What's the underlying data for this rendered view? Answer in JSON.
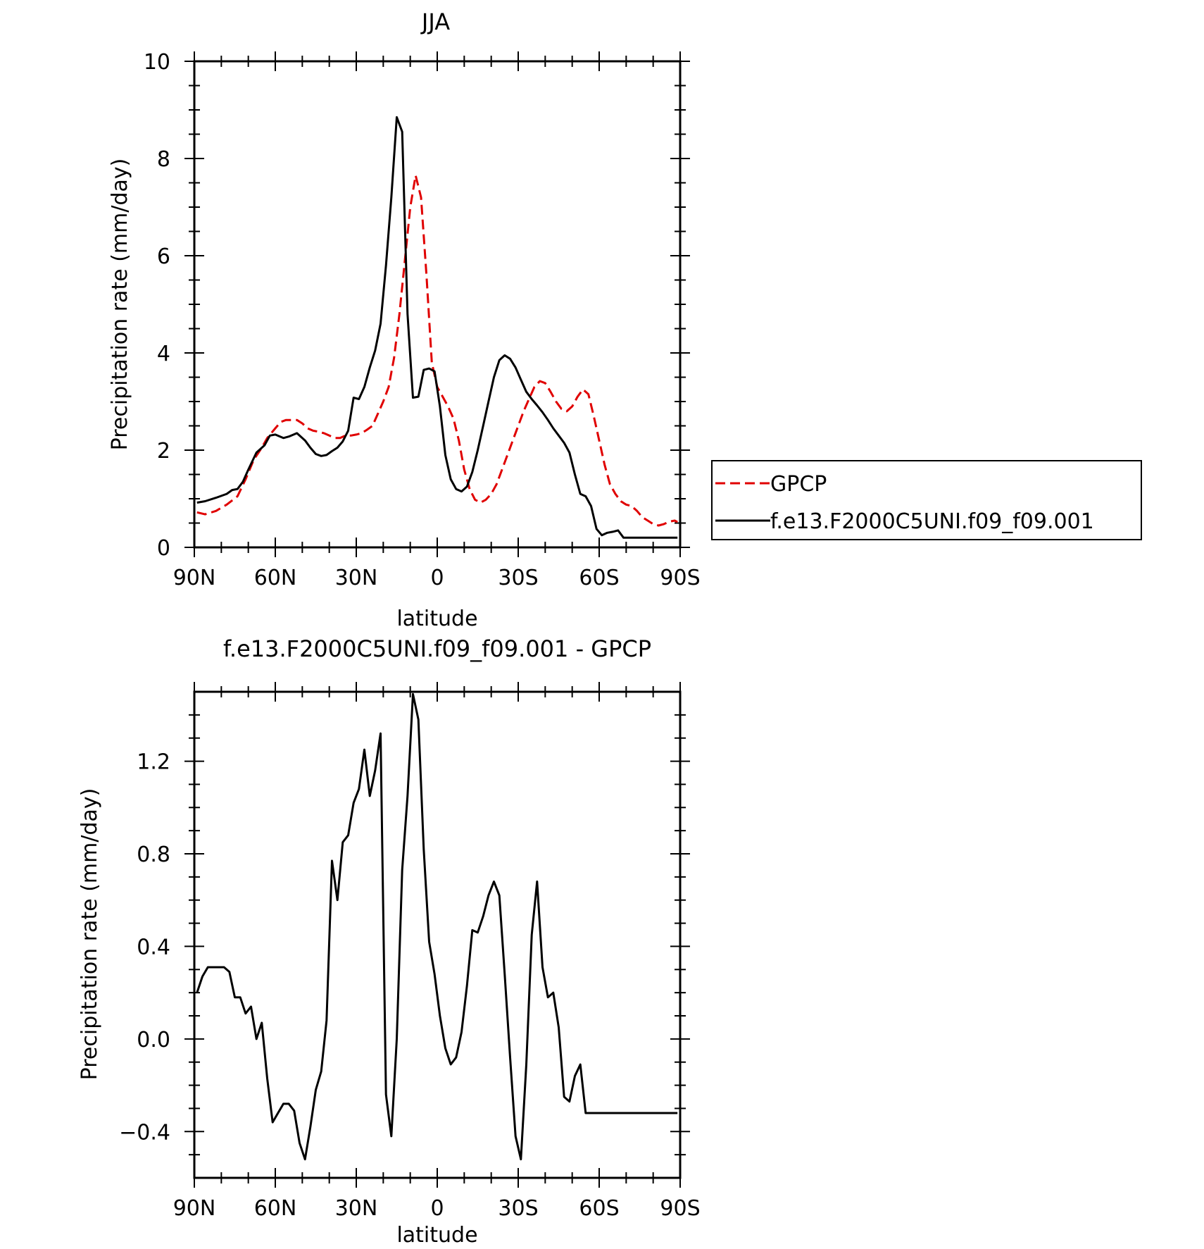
{
  "chart_data": [
    {
      "type": "line",
      "title": "JJA",
      "xlabel": "latitude",
      "ylabel": "Precipitation rate (mm/day)",
      "xlim": [
        90,
        -90
      ],
      "ylim": [
        0,
        10
      ],
      "x_ticks": [
        {
          "value": 90,
          "label": "90N"
        },
        {
          "value": 60,
          "label": "60N"
        },
        {
          "value": 30,
          "label": "30N"
        },
        {
          "value": 0,
          "label": "0"
        },
        {
          "value": -30,
          "label": "30S"
        },
        {
          "value": -60,
          "label": "60S"
        },
        {
          "value": -90,
          "label": "90S"
        }
      ],
      "y_ticks": [
        {
          "value": 0,
          "label": "0"
        },
        {
          "value": 2,
          "label": "2"
        },
        {
          "value": 4,
          "label": "4"
        },
        {
          "value": 6,
          "label": "6"
        },
        {
          "value": 8,
          "label": "8"
        },
        {
          "value": 10,
          "label": "10"
        }
      ],
      "legend_position": "right",
      "series": [
        {
          "name": "GPCP",
          "color": "#e00000",
          "style": "dashed",
          "x": [
            89,
            86,
            82,
            78,
            74,
            71,
            68,
            65,
            63,
            60,
            58,
            56,
            54,
            52,
            50,
            48,
            46,
            44,
            42,
            40,
            38,
            36,
            34,
            32,
            30,
            28,
            26,
            24,
            22,
            20,
            18,
            16,
            14,
            12,
            10,
            8,
            6,
            4,
            2,
            0,
            -2,
            -4,
            -6,
            -8,
            -10,
            -12,
            -14,
            -16,
            -18,
            -20,
            -22,
            -24,
            -26,
            -28,
            -30,
            -32,
            -34,
            -36,
            -38,
            -40,
            -42,
            -44,
            -46,
            -48,
            -50,
            -52,
            -54,
            -56,
            -58,
            -60,
            -62,
            -64,
            -66,
            -68,
            -70,
            -72,
            -74,
            -76,
            -78,
            -80,
            -82,
            -84,
            -86,
            -88,
            -89
          ],
          "y": [
            0.72,
            0.68,
            0.75,
            0.88,
            1.05,
            1.4,
            1.8,
            2.05,
            2.25,
            2.45,
            2.58,
            2.62,
            2.62,
            2.62,
            2.55,
            2.45,
            2.4,
            2.38,
            2.35,
            2.3,
            2.25,
            2.25,
            2.3,
            2.3,
            2.32,
            2.35,
            2.42,
            2.5,
            2.75,
            3.0,
            3.3,
            3.9,
            4.8,
            5.9,
            7.0,
            7.65,
            7.2,
            5.6,
            3.8,
            3.3,
            3.1,
            2.9,
            2.65,
            2.2,
            1.6,
            1.2,
            0.98,
            0.92,
            0.98,
            1.1,
            1.3,
            1.6,
            1.9,
            2.2,
            2.5,
            2.8,
            3.05,
            3.3,
            3.42,
            3.38,
            3.2,
            3.0,
            2.85,
            2.8,
            2.9,
            3.1,
            3.25,
            3.15,
            2.7,
            2.2,
            1.7,
            1.3,
            1.1,
            0.95,
            0.88,
            0.85,
            0.75,
            0.62,
            0.55,
            0.48,
            0.45,
            0.48,
            0.53,
            0.55,
            0.52
          ]
        },
        {
          "name": "f.e13.F2000C5UNI.f09_f09.001",
          "color": "#000000",
          "style": "solid",
          "x": [
            89,
            86,
            82,
            78,
            76,
            74,
            72,
            70,
            67,
            64,
            62,
            60,
            57,
            55,
            52,
            49,
            47,
            45,
            43,
            41,
            39,
            37,
            35,
            33,
            31,
            29,
            27,
            25,
            23,
            21,
            19,
            17,
            15,
            13,
            11,
            9,
            7,
            5,
            3,
            1,
            -1,
            -3,
            -5,
            -7,
            -9,
            -11,
            -13,
            -15,
            -17,
            -19,
            -21,
            -23,
            -25,
            -27,
            -29,
            -31,
            -33,
            -35,
            -37,
            -39,
            -41,
            -43,
            -45,
            -47,
            -49,
            -51,
            -53,
            -55,
            -57,
            -59,
            -61,
            -63,
            -65,
            -67,
            -69,
            -71,
            -73,
            -75,
            -77,
            -79,
            -81,
            -83,
            -85,
            -87,
            -89
          ],
          "y": [
            0.92,
            0.95,
            1.02,
            1.1,
            1.18,
            1.2,
            1.35,
            1.6,
            1.95,
            2.1,
            2.3,
            2.32,
            2.25,
            2.28,
            2.35,
            2.2,
            2.05,
            1.92,
            1.88,
            1.9,
            1.98,
            2.05,
            2.18,
            2.4,
            3.08,
            3.05,
            3.3,
            3.7,
            4.05,
            4.6,
            5.8,
            7.2,
            8.85,
            8.55,
            4.8,
            3.08,
            3.1,
            3.65,
            3.68,
            3.62,
            2.9,
            1.9,
            1.4,
            1.2,
            1.15,
            1.25,
            1.55,
            2.0,
            2.5,
            3.0,
            3.5,
            3.85,
            3.95,
            3.88,
            3.7,
            3.45,
            3.2,
            3.05,
            2.92,
            2.78,
            2.62,
            2.45,
            2.3,
            2.15,
            1.95,
            1.5,
            1.1,
            1.05,
            0.85,
            0.38,
            0.25,
            0.3,
            0.32,
            0.35,
            0.2,
            0.2,
            0.2,
            0.2,
            0.2,
            0.2,
            0.2,
            0.2,
            0.2,
            0.2,
            0.2
          ]
        }
      ]
    },
    {
      "type": "line",
      "title": "f.e13.F2000C5UNI.f09_f09.001 - GPCP",
      "xlabel": "latitude",
      "ylabel": "Precipitation rate (mm/day)",
      "xlim": [
        90,
        -90
      ],
      "ylim": [
        -0.6,
        1.5
      ],
      "x_ticks": [
        {
          "value": 90,
          "label": "90N"
        },
        {
          "value": 60,
          "label": "60N"
        },
        {
          "value": 30,
          "label": "30N"
        },
        {
          "value": 0,
          "label": "0"
        },
        {
          "value": -30,
          "label": "30S"
        },
        {
          "value": -60,
          "label": "60S"
        },
        {
          "value": -90,
          "label": "90S"
        }
      ],
      "y_ticks": [
        {
          "value": -0.4,
          "label": "−0.4"
        },
        {
          "value": 0.0,
          "label": "0.0"
        },
        {
          "value": 0.4,
          "label": "0.4"
        },
        {
          "value": 0.8,
          "label": "0.8"
        },
        {
          "value": 1.2,
          "label": "1.2"
        }
      ],
      "series": [
        {
          "color": "#000000",
          "style": "solid",
          "x": [
            89,
            87,
            85,
            83,
            79,
            77,
            75,
            73,
            71,
            69,
            67,
            65,
            63,
            61,
            59,
            57,
            55,
            53,
            51,
            49,
            47,
            45,
            43,
            41,
            39,
            37,
            35,
            33,
            31,
            29,
            27,
            25,
            23,
            21,
            19,
            17,
            15,
            13,
            11,
            9,
            7,
            5,
            3,
            1,
            -1,
            -3,
            -5,
            -7,
            -9,
            -11,
            -13,
            -15,
            -17,
            -19,
            -21,
            -23,
            -25,
            -27,
            -29,
            -31,
            -33,
            -35,
            -37,
            -39,
            -41,
            -43,
            -45,
            -47,
            -49,
            -51,
            -53,
            -55,
            -57,
            -59,
            -61,
            -63,
            -65,
            -67,
            -69,
            -71,
            -73,
            -75,
            -77,
            -79,
            -81,
            -83,
            -85,
            -87,
            -89
          ],
          "y": [
            0.2,
            0.27,
            0.31,
            0.31,
            0.31,
            0.29,
            0.18,
            0.18,
            0.11,
            0.14,
            0.0,
            0.07,
            -0.17,
            -0.36,
            -0.32,
            -0.28,
            -0.28,
            -0.31,
            -0.45,
            -0.52,
            -0.38,
            -0.22,
            -0.14,
            0.08,
            0.77,
            0.6,
            0.85,
            0.88,
            1.02,
            1.08,
            1.25,
            1.05,
            1.16,
            1.32,
            -0.24,
            -0.42,
            0.0,
            0.73,
            1.05,
            1.49,
            1.38,
            0.82,
            0.42,
            0.28,
            0.1,
            -0.04,
            -0.11,
            -0.08,
            0.03,
            0.23,
            0.47,
            0.46,
            0.53,
            0.62,
            0.68,
            0.62,
            0.28,
            -0.08,
            -0.42,
            -0.52,
            -0.11,
            0.45,
            0.68,
            0.31,
            0.18,
            0.2,
            0.05,
            -0.25,
            -0.27,
            -0.16,
            -0.11,
            -0.32,
            -0.32,
            -0.32,
            -0.32,
            -0.32,
            -0.32,
            -0.32,
            -0.32,
            -0.32,
            -0.32,
            -0.32,
            -0.32,
            -0.32,
            -0.32,
            -0.32,
            -0.32,
            -0.32,
            -0.32
          ]
        }
      ]
    }
  ]
}
